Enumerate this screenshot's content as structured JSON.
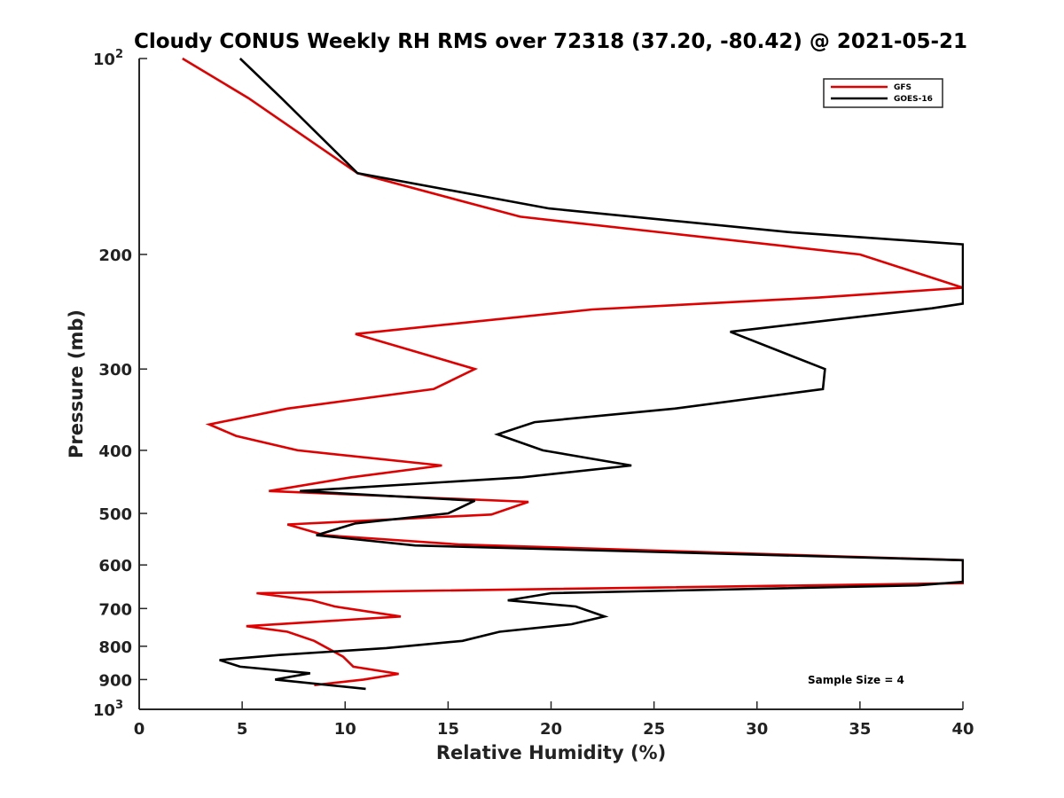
{
  "chart_data": {
    "type": "line",
    "title": "Cloudy CONUS Weekly RH RMS over 72318 (37.20, -80.42) @ 2021-05-21",
    "xlabel": "Relative Humidity (%)",
    "ylabel": "Pressure (mb)",
    "xlim": [
      0,
      40
    ],
    "ylim": [
      100,
      1000
    ],
    "yscale": "log",
    "yreversed": true,
    "grid": false,
    "legend_position": "top-right",
    "x_ticks": [
      0,
      5,
      10,
      15,
      20,
      25,
      30,
      35,
      40
    ],
    "x_tick_labels": [
      "0",
      "5",
      "10",
      "15",
      "20",
      "25",
      "30",
      "35",
      "40"
    ],
    "y_ticks": [
      {
        "value": 100,
        "base": "10",
        "exp": "2"
      },
      {
        "value": 200,
        "label": "200"
      },
      {
        "value": 300,
        "label": "300"
      },
      {
        "value": 400,
        "label": "400"
      },
      {
        "value": 500,
        "label": "500"
      },
      {
        "value": 600,
        "label": "600"
      },
      {
        "value": 700,
        "label": "700"
      },
      {
        "value": 800,
        "label": "800"
      },
      {
        "value": 900,
        "label": "900"
      },
      {
        "value": 1000,
        "base": "10",
        "exp": "3"
      }
    ],
    "annotation": "Sample Size = 4",
    "series": [
      {
        "name": "GFS",
        "color": "#e00000",
        "points": [
          [
            2.1,
            100
          ],
          [
            5.3,
            115
          ],
          [
            10.6,
            150
          ],
          [
            18.5,
            175
          ],
          [
            35.0,
            200
          ],
          [
            40.0,
            225
          ],
          [
            33.0,
            233
          ],
          [
            22.0,
            243
          ],
          [
            10.5,
            265
          ],
          [
            16.3,
            300
          ],
          [
            14.3,
            322
          ],
          [
            7.2,
            345
          ],
          [
            3.4,
            365
          ],
          [
            4.7,
            380
          ],
          [
            7.7,
            400
          ],
          [
            14.7,
            422
          ],
          [
            10.3,
            440
          ],
          [
            6.3,
            462
          ],
          [
            18.9,
            480
          ],
          [
            17.1,
            502
          ],
          [
            7.2,
            520
          ],
          [
            9.0,
            540
          ],
          [
            15.5,
            558
          ],
          [
            40.0,
            590
          ],
          [
            40.0,
            640
          ],
          [
            5.7,
            663
          ],
          [
            8.4,
            680
          ],
          [
            9.5,
            695
          ],
          [
            12.7,
            720
          ],
          [
            5.2,
            745
          ],
          [
            7.2,
            760
          ],
          [
            8.5,
            785
          ],
          [
            9.9,
            830
          ],
          [
            10.4,
            860
          ],
          [
            12.6,
            882
          ],
          [
            10.9,
            900
          ],
          [
            8.5,
            918
          ]
        ]
      },
      {
        "name": "GOES-16",
        "color": "#000000",
        "points": [
          [
            4.9,
            100
          ],
          [
            6.9,
            115
          ],
          [
            10.6,
            150
          ],
          [
            19.9,
            170
          ],
          [
            31.7,
            185
          ],
          [
            40.0,
            193
          ],
          [
            40.0,
            238
          ],
          [
            38.5,
            242
          ],
          [
            28.7,
            263
          ],
          [
            33.3,
            300
          ],
          [
            33.2,
            322
          ],
          [
            26.0,
            345
          ],
          [
            19.2,
            362
          ],
          [
            17.4,
            378
          ],
          [
            19.6,
            400
          ],
          [
            23.9,
            422
          ],
          [
            18.6,
            440
          ],
          [
            7.8,
            462
          ],
          [
            16.3,
            478
          ],
          [
            15.0,
            500
          ],
          [
            10.5,
            518
          ],
          [
            8.6,
            540
          ],
          [
            13.4,
            560
          ],
          [
            40.0,
            590
          ],
          [
            40.0,
            637
          ],
          [
            37.8,
            645
          ],
          [
            20.0,
            663
          ],
          [
            17.9,
            680
          ],
          [
            21.2,
            695
          ],
          [
            22.6,
            720
          ],
          [
            21.0,
            740
          ],
          [
            17.5,
            760
          ],
          [
            15.7,
            785
          ],
          [
            12.0,
            805
          ],
          [
            6.8,
            825
          ],
          [
            3.9,
            840
          ],
          [
            4.9,
            860
          ],
          [
            8.3,
            880
          ],
          [
            6.6,
            900
          ],
          [
            11.0,
            930
          ]
        ]
      }
    ]
  }
}
